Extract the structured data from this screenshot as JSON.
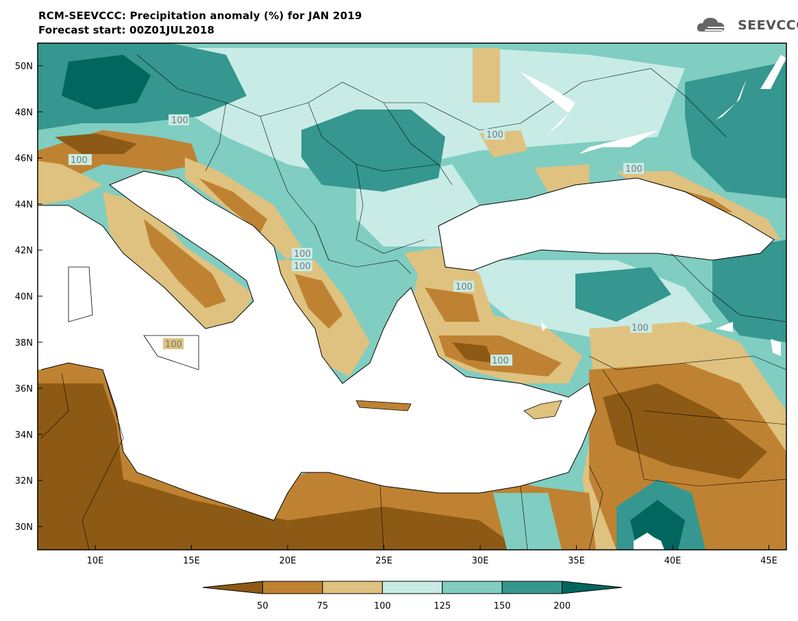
{
  "title": {
    "line1": "RCM-SEEVCCC: Precipitation anomaly (%) for JAN 2019",
    "line2": "Forecast start: 00Z01JUL2018"
  },
  "logo": {
    "text": "SEEVCCC",
    "icon": "cloud-icon"
  },
  "map": {
    "lat_labels": [
      "50N",
      "48N",
      "46N",
      "44N",
      "42N",
      "40N",
      "38N",
      "36N",
      "34N",
      "32N",
      "30N"
    ],
    "lon_labels": [
      "10E",
      "15E",
      "20E",
      "25E",
      "30E",
      "35E",
      "40E",
      "45E"
    ],
    "contour_labels": [
      "100",
      "100",
      "100",
      "100",
      "100",
      "100",
      "100",
      "100",
      "100",
      "100"
    ],
    "colors": {
      "very_dry": "#8c5a14",
      "dry": "#bf8232",
      "slightly_dry": "#dfc27f",
      "slightly_wet": "#c8ebe6",
      "wet": "#80cdc1",
      "very_wet": "#35978f",
      "extreme_wet": "#01665e",
      "sea": "#ffffff"
    }
  },
  "colorbar": {
    "labels": [
      "50",
      "75",
      "100",
      "125",
      "150",
      "200"
    ],
    "colors": [
      "#8c5a14",
      "#bf8232",
      "#dfc27f",
      "#c8ebe6",
      "#80cdc1",
      "#35978f",
      "#01665e"
    ]
  }
}
